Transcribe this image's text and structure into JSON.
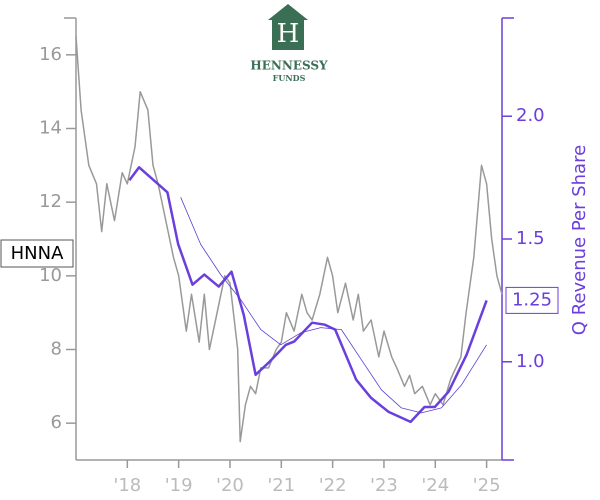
{
  "chart_data": {
    "type": "line",
    "logo": {
      "name": "HENNESSY",
      "sub": "FUNDS"
    },
    "ticker": "HNNA",
    "y2label": "Q Revenue Per Share",
    "xlim": [
      2017,
      2025.3
    ],
    "xticks": [
      {
        "value": 2018,
        "label": "'18"
      },
      {
        "value": 2019,
        "label": "'19"
      },
      {
        "value": 2020,
        "label": "'20"
      },
      {
        "value": 2021,
        "label": "'21"
      },
      {
        "value": 2022,
        "label": "'22"
      },
      {
        "value": 2023,
        "label": "'23"
      },
      {
        "value": 2024,
        "label": "'24"
      },
      {
        "value": 2025,
        "label": "'25"
      }
    ],
    "ylim": [
      5,
      17
    ],
    "yticks": [
      6,
      8,
      10,
      12,
      14,
      16
    ],
    "y2lim": [
      0.6,
      2.4
    ],
    "y2ticks": [
      {
        "value": 1.0,
        "label": "1.0"
      },
      {
        "value": 1.5,
        "label": "1.5"
      },
      {
        "value": 2.0,
        "label": "2.0"
      }
    ],
    "series": [
      {
        "color": "#999999",
        "width": 1.5,
        "x": [
          2017.0,
          2017.1,
          2017.25,
          2017.4,
          2017.5,
          2017.6,
          2017.75,
          2017.9,
          2018.0,
          2018.15,
          2018.25,
          2018.4,
          2018.5,
          2018.6,
          2018.75,
          2018.9,
          2019.0,
          2019.15,
          2019.25,
          2019.4,
          2019.5,
          2019.6,
          2019.75,
          2019.9,
          2020.0,
          2020.15,
          2020.2,
          2020.3,
          2020.4,
          2020.5,
          2020.6,
          2020.75,
          2020.9,
          2021.0,
          2021.1,
          2021.25,
          2021.4,
          2021.5,
          2021.6,
          2021.75,
          2021.9,
          2022.0,
          2022.1,
          2022.25,
          2022.4,
          2022.5,
          2022.6,
          2022.75,
          2022.9,
          2023.0,
          2023.15,
          2023.25,
          2023.4,
          2023.5,
          2023.6,
          2023.75,
          2023.9,
          2024.0,
          2024.15,
          2024.3,
          2024.5,
          2024.6,
          2024.75,
          2024.9,
          2025.0,
          2025.1,
          2025.2,
          2025.3
        ],
        "values": [
          16.5,
          14.5,
          13.0,
          12.5,
          11.2,
          12.5,
          11.5,
          12.8,
          12.5,
          13.5,
          15.0,
          14.5,
          13.0,
          12.5,
          11.5,
          10.5,
          10.0,
          8.5,
          9.5,
          8.2,
          9.5,
          8.0,
          9.0,
          10.0,
          9.8,
          8.0,
          5.5,
          6.5,
          7.0,
          6.8,
          7.5,
          7.5,
          8.0,
          8.2,
          9.0,
          8.5,
          9.5,
          9.0,
          8.8,
          9.5,
          10.5,
          10.0,
          9.0,
          9.8,
          8.8,
          9.5,
          8.5,
          8.8,
          7.8,
          8.5,
          7.8,
          7.5,
          7.0,
          7.3,
          6.8,
          7.0,
          6.5,
          6.8,
          6.5,
          7.2,
          7.8,
          9.0,
          10.5,
          13.0,
          12.5,
          11.0,
          10.0,
          9.5
        ]
      },
      {
        "color": "#6a3fdc",
        "width": 2.5,
        "axis": "y2",
        "x": [
          2018.04,
          2018.23,
          2018.78,
          2018.99,
          2019.27,
          2019.5,
          2019.78,
          2020.03,
          2020.27,
          2020.5,
          2020.77,
          2021.09,
          2021.25,
          2021.6,
          2021.85,
          2022.05,
          2022.46,
          2022.75,
          2023.09,
          2023.52,
          2023.79,
          2023.99,
          2024.26,
          2024.61,
          2025.0
        ],
        "values": [
          1.739,
          1.792,
          1.69,
          1.48,
          1.314,
          1.355,
          1.306,
          1.367,
          1.19,
          0.947,
          1.0,
          1.069,
          1.082,
          1.159,
          1.151,
          1.131,
          0.927,
          0.853,
          0.796,
          0.755,
          0.816,
          0.816,
          0.878,
          1.029,
          1.25
        ],
        "value_labels": [
          null,
          null,
          null,
          null,
          null,
          null,
          null,
          null,
          null,
          null,
          null,
          null,
          null,
          null,
          null,
          null,
          null,
          null,
          null,
          null,
          null,
          null,
          null,
          null,
          "1.25"
        ]
      },
      {
        "color": "#5a3fd0",
        "width": 0.8,
        "axis": "y2",
        "x": [
          2019.04,
          2019.43,
          2019.82,
          2020.21,
          2020.6,
          2020.99,
          2021.38,
          2021.77,
          2022.17,
          2022.56,
          2022.95,
          2023.34,
          2023.73,
          2024.12,
          2024.51,
          2025.0
        ],
        "values": [
          1.67,
          1.478,
          1.355,
          1.253,
          1.131,
          1.069,
          1.118,
          1.139,
          1.131,
          1.008,
          0.886,
          0.812,
          0.792,
          0.812,
          0.906,
          1.069
        ]
      }
    ]
  }
}
